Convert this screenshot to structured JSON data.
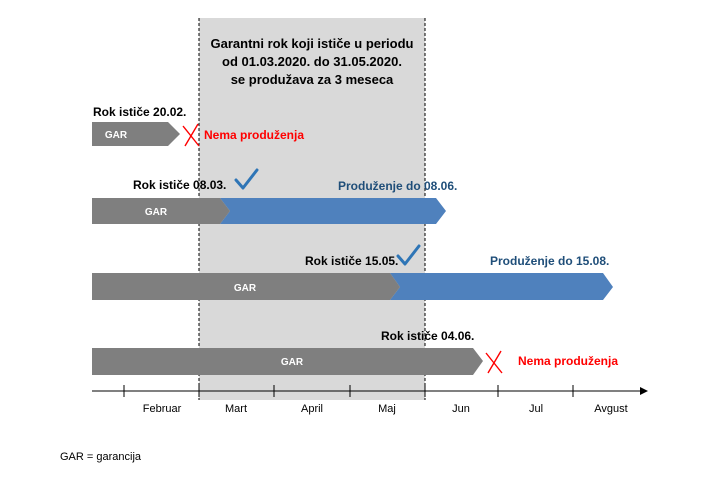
{
  "period_box": {
    "lines": [
      "Garantni rok koji ističe u periodu",
      "od 01.03.2020. do 31.05.2020.",
      "se produžava za 3 meseca"
    ]
  },
  "rows": [
    {
      "expiry_label": "Rok ističe 20.02.",
      "bar_label": "GAR",
      "outcome_label": "Nema produženja",
      "outcome": "none"
    },
    {
      "expiry_label": "Rok ističe 08.03.",
      "bar_label": "GAR",
      "outcome_label": "Produženje do 08.06.",
      "outcome": "extended"
    },
    {
      "expiry_label": "Rok ističe 15.05.",
      "bar_label": "GAR",
      "outcome_label": "Produženje do 15.08.",
      "outcome": "extended"
    },
    {
      "expiry_label": "Rok ističe 04.06.",
      "bar_label": "GAR",
      "outcome_label": "Nema produženja",
      "outcome": "none"
    }
  ],
  "months": [
    "Februar",
    "Mart",
    "April",
    "Maj",
    "Jun",
    "Jul",
    "Avgust"
  ],
  "footnote": "GAR = garancija",
  "icons": {
    "cross": "x-mark-icon",
    "check": "check-mark-icon"
  },
  "colors": {
    "gar_bar": "#7f7f7f",
    "extension_bar": "#4f81bd",
    "period_fill": "#d9d9d9",
    "no_extension_text": "#ff0000",
    "extension_text": "#1f4e79",
    "check": "#2e75b6",
    "cross": "#ff0000"
  }
}
